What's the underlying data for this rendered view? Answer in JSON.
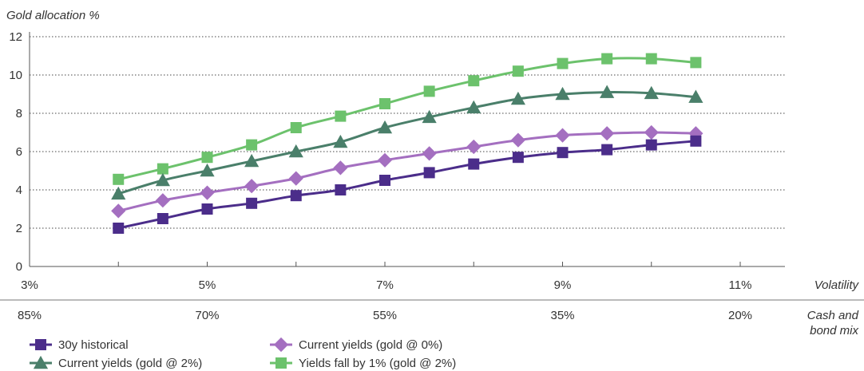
{
  "chart_data": {
    "type": "line",
    "ylabel": "Gold allocation %",
    "ylim": [
      0,
      12
    ],
    "yticks": [
      "0",
      "2",
      "4",
      "6",
      "8",
      "10",
      "12"
    ],
    "xlim": [
      3,
      11
    ],
    "xticks": [
      "3%",
      "5%",
      "7%",
      "9%",
      "11%"
    ],
    "xlabel": "Volatility",
    "secondary_axis": {
      "label_line1": "Cash and",
      "label_line2": "bond mix",
      "ticks": [
        "85%",
        "70%",
        "55%",
        "35%",
        "20%"
      ]
    },
    "grid": "horizontal dotted",
    "legend_position": "bottom-left",
    "x": [
      4,
      4.5,
      5,
      5.5,
      6,
      6.5,
      7,
      7.5,
      8,
      8.5,
      9,
      9.5,
      10,
      10.5
    ],
    "series": [
      {
        "name": "30y historical",
        "color": "#4b2d8a",
        "marker": "square",
        "values": [
          2.0,
          2.5,
          3.0,
          3.3,
          3.7,
          4.0,
          4.5,
          4.9,
          5.35,
          5.7,
          5.95,
          6.1,
          6.35,
          6.55
        ]
      },
      {
        "name": "Current yields (gold @ 0%)",
        "color": "#a46fc0",
        "marker": "diamond",
        "values": [
          2.9,
          3.45,
          3.85,
          4.2,
          4.6,
          5.15,
          5.55,
          5.9,
          6.25,
          6.6,
          6.85,
          6.95,
          7.0,
          6.95
        ]
      },
      {
        "name": "Current yields (gold @ 2%)",
        "color": "#4a7f6a",
        "marker": "triangle",
        "values": [
          3.8,
          4.5,
          5.0,
          5.5,
          6.0,
          6.5,
          7.25,
          7.8,
          8.3,
          8.75,
          9.0,
          9.1,
          9.05,
          8.85
        ]
      },
      {
        "name": "Yields fall by 1% (gold @ 2%)",
        "color": "#6cc26c",
        "marker": "square",
        "values": [
          4.55,
          5.1,
          5.7,
          6.35,
          7.25,
          7.85,
          8.5,
          9.15,
          9.7,
          10.2,
          10.6,
          10.85,
          10.85,
          10.65
        ]
      }
    ]
  }
}
